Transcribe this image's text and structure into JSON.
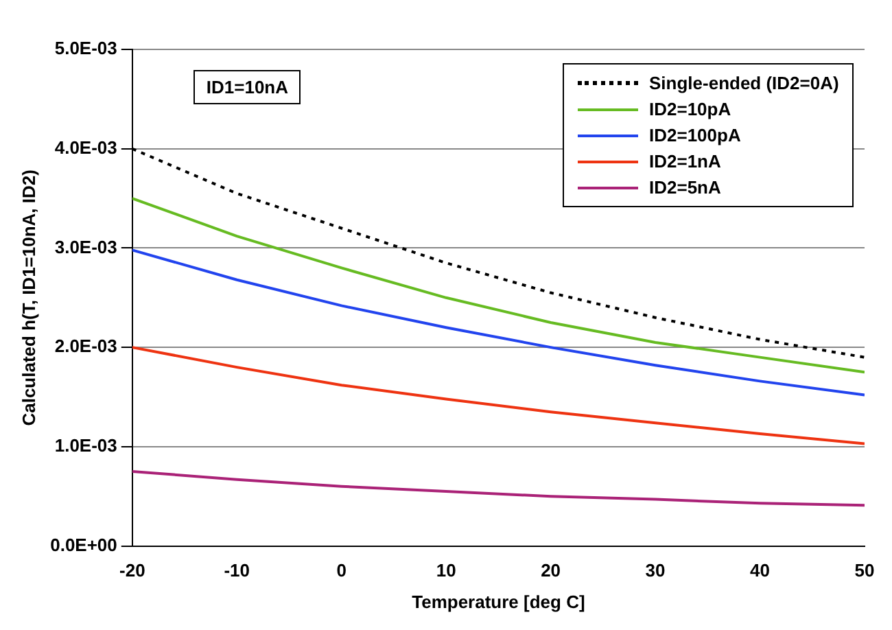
{
  "chart_data": {
    "type": "line",
    "xlabel": "Temperature [deg C]",
    "ylabel": "Calculated h(T, ID1=10nA, ID2)",
    "x": [
      -20,
      -10,
      0,
      10,
      20,
      30,
      40,
      50
    ],
    "series": [
      {
        "name": "Single-ended (ID2=0A)",
        "color": "#000000",
        "line_style": "dotted",
        "values": [
          0.004,
          0.00355,
          0.0032,
          0.00285,
          0.00255,
          0.0023,
          0.00208,
          0.0019
        ]
      },
      {
        "name": "ID2=10pA",
        "color": "#66bb22",
        "values": [
          0.0035,
          0.00312,
          0.0028,
          0.0025,
          0.00225,
          0.00205,
          0.0019,
          0.00175
        ]
      },
      {
        "name": "ID2=100pA",
        "color": "#2244ee",
        "values": [
          0.00298,
          0.00268,
          0.00242,
          0.0022,
          0.002,
          0.00182,
          0.00166,
          0.00152
        ]
      },
      {
        "name": "ID2=1nA",
        "color": "#ee3311",
        "values": [
          0.002,
          0.0018,
          0.00162,
          0.00148,
          0.00135,
          0.00124,
          0.00113,
          0.00103
        ]
      },
      {
        "name": "ID2=5nA",
        "color": "#aa2277",
        "values": [
          0.00075,
          0.00067,
          0.0006,
          0.00055,
          0.0005,
          0.00047,
          0.00043,
          0.00041
        ]
      }
    ],
    "xlim": [
      -20,
      50
    ],
    "xticks": [
      -20,
      -10,
      0,
      10,
      20,
      30,
      40,
      50
    ],
    "ylim": [
      0,
      0.005
    ],
    "yticks": [
      {
        "value": 0,
        "label": "0.0E+00"
      },
      {
        "value": 0.001,
        "label": "1.0E-03"
      },
      {
        "value": 0.002,
        "label": "2.0E-03"
      },
      {
        "value": 0.003,
        "label": "3.0E-03"
      },
      {
        "value": 0.004,
        "label": "4.0E-03"
      },
      {
        "value": 0.005,
        "label": "5.0E-03"
      }
    ],
    "grid": "y",
    "legend": "top right",
    "marker": "none",
    "annotations": [
      "ID1=10nA"
    ]
  }
}
